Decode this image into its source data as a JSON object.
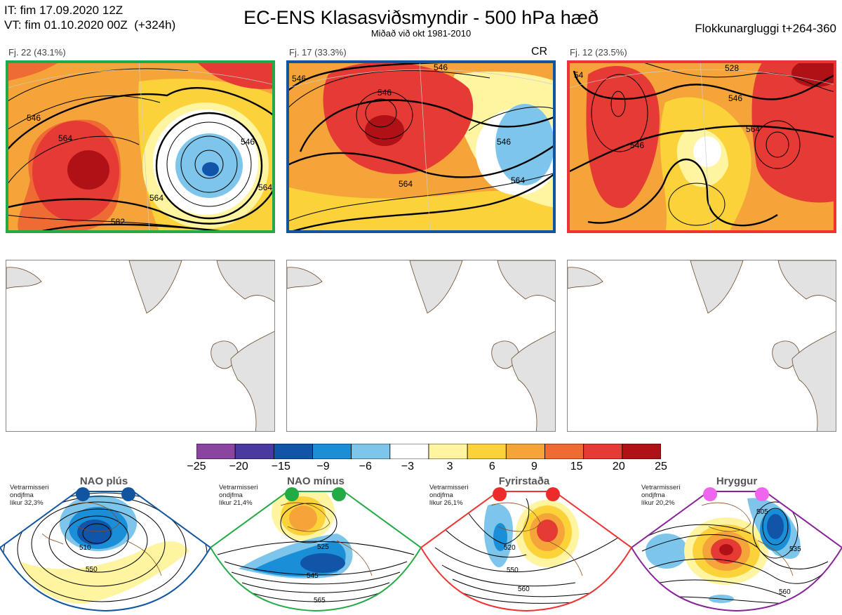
{
  "header": {
    "it_line": "IT: fim 17.09.2020 12Z",
    "vt_line": "VT: fim 01.10.2020 00Z  (+324h)",
    "title": "EC-ENS Klasasviðsmyndir - 500 hPa hæð",
    "subtitle": "Miðað við okt 1981-2010",
    "window": "Flokkunargluggi t+264-360"
  },
  "clusters": [
    {
      "label": "Fj. 22 (43.1%)",
      "border": "#22aa44",
      "contours": [
        "546",
        "564",
        "564",
        "582",
        "546",
        "564"
      ]
    },
    {
      "label": "Fj. 17 (33.3%)",
      "border": "#1155a0",
      "extra": "CR",
      "contours": [
        "546",
        "546",
        "546",
        "564",
        "564",
        "546"
      ]
    },
    {
      "label": "Fj. 12 (23.5%)",
      "border": "#ee3333",
      "contours": [
        "528",
        "546",
        "546",
        "564",
        "54"
      ]
    }
  ],
  "colorbar": {
    "colors": [
      "#8b44a0",
      "#4a3aa0",
      "#1155a8",
      "#1a8fd8",
      "#7ec5ec",
      "#ffffff",
      "#fff4a0",
      "#fbd23a",
      "#f5a43a",
      "#ee6b33",
      "#e63a35",
      "#b01116"
    ],
    "labels": [
      "−25",
      "−20",
      "−15",
      "−9",
      "−6",
      "−3",
      "3",
      "6",
      "9",
      "15",
      "20",
      "25"
    ]
  },
  "regimes": [
    {
      "name": "NAO plús",
      "note": "Vetrarmisseri\nondjfma\nlíkur 32,3%",
      "border": "#1155a0",
      "dot": "#1155a0",
      "contours": [
        "510",
        "550"
      ]
    },
    {
      "name": "NAO mínus",
      "note": "Vetrarmisseri\nondjfma\nlíkur 21,4%",
      "border": "#22aa44",
      "dot": "#22aa44",
      "contours": [
        "525",
        "545",
        "565"
      ]
    },
    {
      "name": "Fyrirstaða",
      "note": "Vetrarmisseri\nondjfma\nlíkur 26,1%",
      "border": "#ee3333",
      "dot": "#ee2b2b",
      "contours": [
        "520",
        "550",
        "560"
      ]
    },
    {
      "name": "Hryggur",
      "note": "Vetrarmisseri\nondjfma\nlíkur 20,2%",
      "border": "#882299",
      "dot": "#ee66ee",
      "contours": [
        "505",
        "535",
        "560"
      ]
    }
  ]
}
